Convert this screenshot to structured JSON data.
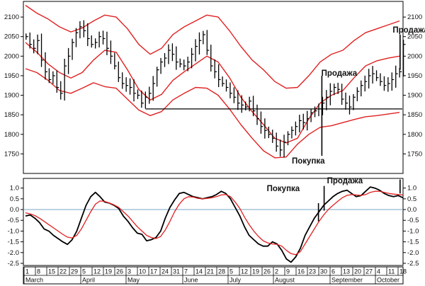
{
  "chart_data": [
    {
      "type": "bar",
      "subtype": "ohlc-with-envelope-channel",
      "title": "",
      "xlabel": "",
      "ylabel": "",
      "ylim": [
        1700,
        2140
      ],
      "y_ticks": [
        1750,
        1800,
        1850,
        1900,
        1950,
        2000,
        2050,
        2100
      ],
      "grid": false,
      "x_axis": {
        "date_labels": [
          "1",
          "8",
          "15",
          "22",
          "29",
          "5",
          "12",
          "19",
          "26",
          "3",
          "10",
          "17",
          "24",
          "31",
          "7",
          "14",
          "21",
          "28",
          "5",
          "12",
          "19",
          "26",
          "2",
          "9",
          "16",
          "23",
          "30",
          "6",
          "13",
          "20",
          "27",
          "4",
          "11",
          "18"
        ],
        "month_labels": [
          "March",
          "April",
          "May",
          "June",
          "July",
          "August",
          "September",
          "October"
        ]
      },
      "colors": {
        "price_bars": "#000000",
        "channel": "#e02020",
        "support_line": "#000000"
      },
      "channel_lines": [
        {
          "role": "upper",
          "x": [
            0,
            1,
            2,
            3,
            4,
            5,
            6,
            7,
            8,
            9,
            10,
            11,
            12,
            13,
            14,
            15,
            16,
            17,
            18,
            19,
            20,
            21,
            22,
            23,
            24,
            25,
            26,
            27,
            28,
            29,
            30,
            31,
            32,
            33
          ],
          "values": [
            2130,
            2110,
            2095,
            2075,
            2062,
            2072,
            2090,
            2105,
            2100,
            2070,
            2030,
            2005,
            2020,
            2055,
            2075,
            2090,
            2105,
            2100,
            2065,
            2025,
            1990,
            1965,
            1935,
            1918,
            1920,
            1950,
            1985,
            2005,
            2015,
            2040,
            2060,
            2070,
            2080,
            2090
          ]
        },
        {
          "role": "middle",
          "x": [
            0,
            1,
            2,
            3,
            4,
            5,
            6,
            7,
            8,
            9,
            10,
            11,
            12,
            13,
            14,
            15,
            16,
            17,
            18,
            19,
            20,
            21,
            22,
            23,
            24,
            25,
            26,
            27,
            28,
            29,
            30,
            31,
            32,
            33
          ],
          "values": [
            2035,
            2010,
            1980,
            1958,
            1944,
            1958,
            1990,
            2015,
            2010,
            1965,
            1915,
            1888,
            1902,
            1938,
            1960,
            1980,
            2000,
            1985,
            1945,
            1895,
            1858,
            1825,
            1790,
            1778,
            1790,
            1840,
            1880,
            1900,
            1912,
            1945,
            1975,
            1988,
            1995,
            2000
          ]
        },
        {
          "role": "lower",
          "x": [
            0,
            1,
            2,
            3,
            4,
            5,
            6,
            7,
            8,
            9,
            10,
            11,
            12,
            13,
            14,
            15,
            16,
            17,
            18,
            19,
            20,
            21,
            22,
            23,
            24,
            25,
            26,
            27,
            28,
            29,
            30,
            31,
            32,
            33
          ],
          "values": [
            1968,
            1958,
            1938,
            1912,
            1905,
            1918,
            1932,
            1922,
            1918,
            1890,
            1862,
            1848,
            1858,
            1888,
            1905,
            1920,
            1918,
            1900,
            1865,
            1825,
            1790,
            1758,
            1740,
            1742,
            1775,
            1800,
            1818,
            1822,
            1830,
            1838,
            1845,
            1848,
            1852,
            1856
          ]
        }
      ],
      "price_close": [
        2050,
        2030,
        2020,
        2040,
        1990,
        1960,
        1940,
        1950,
        1920,
        1905,
        1975,
        2000,
        2035,
        2060,
        2075,
        2065,
        2045,
        2030,
        2035,
        2050,
        2045,
        2020,
        2000,
        1975,
        1945,
        1930,
        1925,
        1920,
        1905,
        1900,
        1880,
        1895,
        1905,
        1930,
        1965,
        1985,
        1995,
        2015,
        2005,
        1985,
        1980,
        1975,
        1985,
        2005,
        2025,
        2040,
        2055,
        2015,
        1975,
        1960,
        1940,
        1930,
        1920,
        1905,
        1895,
        1880,
        1875,
        1870,
        1885,
        1860,
        1840,
        1820,
        1810,
        1800,
        1790,
        1770,
        1760,
        1780,
        1800,
        1810,
        1820,
        1835,
        1830,
        1840,
        1855,
        1860,
        1865,
        1880,
        1895,
        1910,
        1920,
        1915,
        1890,
        1880,
        1870,
        1895,
        1910,
        1925,
        1935,
        1950,
        1955,
        1945,
        1935,
        1925,
        1930,
        1940,
        1955,
        1960,
        2030
      ],
      "support_level": 1865,
      "annotations": [
        {
          "text": "Продажа",
          "x_index": 32.4,
          "y": 2060
        },
        {
          "text": "Продажа",
          "x_index": 26.1,
          "y": 1950
        },
        {
          "text": "Покупка",
          "x_index": 23.5,
          "y": 1725
        }
      ]
    },
    {
      "type": "line",
      "title": "",
      "xlabel": "",
      "ylabel": "",
      "ylim": [
        -2.6,
        1.45
      ],
      "y_ticks": [
        -2.5,
        -2.0,
        -1.5,
        -1.0,
        -0.5,
        0.0,
        0.5,
        1.0
      ],
      "y_tick_labels": [
        "-2.5",
        "-2.0",
        "-1.5",
        "-1.0",
        "-0.5",
        "0.0",
        "0.5",
        "1.0"
      ],
      "zero_line": 0,
      "grid": false,
      "colors": {
        "oscillator": "#000000",
        "signal": "#e02020",
        "zero_line": "#7aa6c4"
      },
      "series": [
        {
          "role": "oscillator",
          "values": [
            -0.3,
            -0.25,
            -0.4,
            -0.6,
            -0.9,
            -1.0,
            -1.2,
            -1.35,
            -1.5,
            -1.62,
            -1.4,
            -1.0,
            -0.4,
            0.2,
            0.6,
            0.8,
            0.6,
            0.35,
            0.3,
            0.2,
            0.05,
            -0.3,
            -0.55,
            -0.85,
            -1.1,
            -1.15,
            -1.45,
            -1.4,
            -1.3,
            -1.0,
            -0.4,
            0.1,
            0.45,
            0.75,
            0.8,
            0.7,
            0.6,
            0.55,
            0.5,
            0.55,
            0.6,
            0.7,
            0.85,
            0.75,
            0.5,
            0.1,
            -0.3,
            -0.8,
            -1.2,
            -1.4,
            -1.6,
            -1.7,
            -1.7,
            -1.5,
            -1.6,
            -1.9,
            -2.3,
            -2.45,
            -2.2,
            -1.8,
            -1.2,
            -0.8,
            -0.4,
            -0.1,
            0.2,
            0.4,
            0.6,
            0.75,
            0.85,
            0.9,
            0.75,
            0.6,
            0.65,
            0.85,
            1.05,
            1.0,
            0.9,
            0.75,
            0.65,
            0.6,
            0.65,
            0.55
          ]
        },
        {
          "role": "signal",
          "values": [
            -0.15,
            -0.2,
            -0.28,
            -0.4,
            -0.55,
            -0.7,
            -0.85,
            -1.0,
            -1.15,
            -1.28,
            -1.32,
            -1.2,
            -0.9,
            -0.5,
            -0.1,
            0.25,
            0.4,
            0.38,
            0.3,
            0.22,
            0.1,
            -0.1,
            -0.3,
            -0.55,
            -0.8,
            -1.0,
            -1.2,
            -1.3,
            -1.35,
            -1.25,
            -0.95,
            -0.55,
            -0.1,
            0.25,
            0.5,
            0.6,
            0.58,
            0.52,
            0.5,
            0.52,
            0.55,
            0.6,
            0.68,
            0.7,
            0.6,
            0.35,
            0.05,
            -0.35,
            -0.7,
            -1.0,
            -1.25,
            -1.45,
            -1.55,
            -1.6,
            -1.62,
            -1.7,
            -1.9,
            -2.05,
            -2.1,
            -1.95,
            -1.6,
            -1.25,
            -0.9,
            -0.55,
            -0.25,
            0.0,
            0.2,
            0.38,
            0.55,
            0.66,
            0.7,
            0.68,
            0.66,
            0.7,
            0.8,
            0.85,
            0.85,
            0.8,
            0.75,
            0.72,
            0.7,
            0.68
          ]
        }
      ],
      "annotations": [
        {
          "text": "Покупка",
          "x_index": 24.2,
          "y": 0.85
        },
        {
          "text": "Продажа",
          "x_index": 26.6,
          "y": 1.22
        }
      ]
    }
  ]
}
